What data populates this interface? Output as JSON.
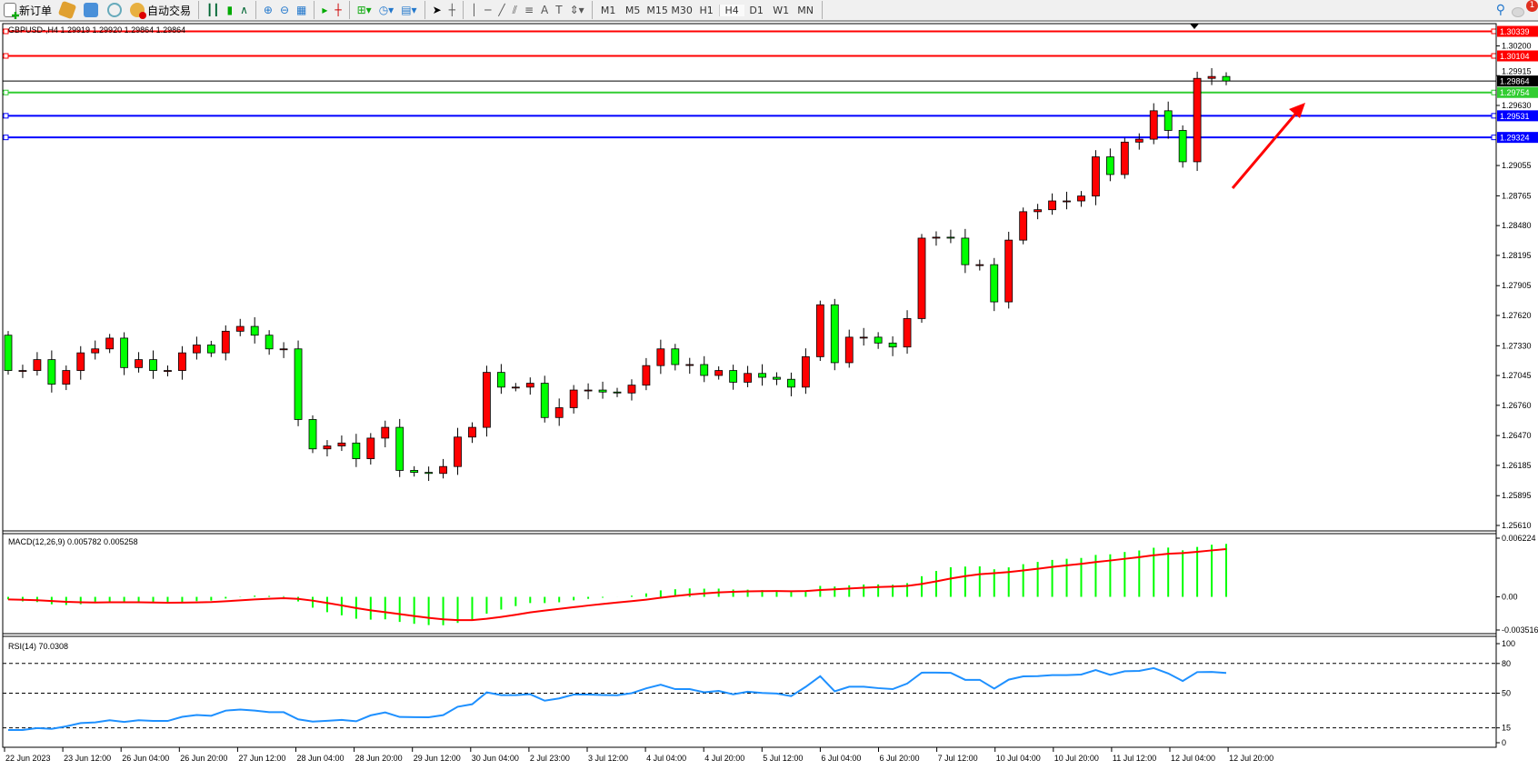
{
  "toolbar": {
    "new_order": "新订单",
    "auto_trading": "自动交易",
    "timeframes": [
      "M1",
      "M5",
      "M15",
      "M30",
      "H1",
      "H4",
      "D1",
      "W1",
      "MN"
    ],
    "active_timeframe": "H4",
    "notification_count": "1"
  },
  "chart": {
    "title": "GBPUSD-,H4  1.29919 1.29920 1.29864 1.29864",
    "colors": {
      "bull": "#ff0000",
      "bear": "#00ff00",
      "grid": "#000000",
      "macd_hist": "#00ff00",
      "macd_signal": "#ff0000",
      "rsi": "#1e90ff"
    },
    "closes_start": 1.27431,
    "closes": [
      1.27093,
      1.27093,
      1.27197,
      1.26962,
      1.27093,
      1.27262,
      1.273,
      1.27403,
      1.27121,
      1.27197,
      1.27093,
      1.27093,
      1.27262,
      1.27337,
      1.27262,
      1.27469,
      1.27515,
      1.27431,
      1.273,
      1.273,
      1.26624,
      1.26343,
      1.26371,
      1.26399,
      1.26249,
      1.26446,
      1.26549,
      1.26137,
      1.26118,
      1.26108,
      1.26174,
      1.26456,
      1.26549,
      1.27075,
      1.26934,
      1.26934,
      1.26971,
      1.26643,
      1.26737,
      1.26906,
      1.26906,
      1.26887,
      1.26878,
      1.26953,
      1.2714,
      1.273,
      1.2715,
      1.2715,
      1.27046,
      1.27093,
      1.26981,
      1.27065,
      1.27028,
      1.27009,
      1.26934,
      1.27225,
      1.27722,
      1.27168,
      1.27412,
      1.27412,
      1.27356,
      1.27318,
      1.2759,
      1.2836,
      1.28369,
      1.2836,
      1.28106,
      1.28106,
      1.2775,
      1.28341,
      1.28613,
      1.28632,
      1.28716,
      1.28716,
      1.28763,
      1.29138,
      1.28969,
      1.29279,
      1.29307,
      1.29579,
      1.29391,
      1.29091,
      1.29889,
      1.29907,
      1.29864
    ],
    "price_range": [
      1.2561,
      1.30339
    ],
    "price_ticks": [
      "1.30200",
      "1.29915",
      "1.29630",
      "1.29055",
      "1.28765",
      "1.28480",
      "1.28195",
      "1.27905",
      "1.27620",
      "1.27330",
      "1.27045",
      "1.26760",
      "1.26470",
      "1.26185",
      "1.25895",
      "1.25610"
    ],
    "hlines": [
      {
        "price": "1.30339",
        "color": "#ff0000"
      },
      {
        "price": "1.30104",
        "color": "#ff0000"
      },
      {
        "price": "1.29864",
        "color": "#000000"
      },
      {
        "price": "1.29754",
        "color": "#32cd32"
      },
      {
        "price": "1.29531",
        "color": "#0000ff"
      },
      {
        "price": "1.29324",
        "color": "#0000ff"
      }
    ],
    "annotation": "red-arrow-up-right",
    "time_labels": [
      "22 Jun 2023",
      "23 Jun 12:00",
      "26 Jun 04:00",
      "26 Jun 20:00",
      "27 Jun 12:00",
      "28 Jun 04:00",
      "28 Jun 20:00",
      "29 Jun 12:00",
      "30 Jun 04:00",
      "2 Jul 23:00",
      "3 Jul 12:00",
      "4 Jul 04:00",
      "4 Jul 20:00",
      "5 Jul 12:00",
      "6 Jul 04:00",
      "6 Jul 20:00",
      "7 Jul 12:00",
      "10 Jul 04:00",
      "10 Jul 20:00",
      "11 Jul 12:00",
      "12 Jul 04:00",
      "12 Jul 20:00"
    ]
  },
  "macd": {
    "label": "MACD(12,26,9) 0.005782 0.005258",
    "range": [
      -0.003516,
      0.006224
    ],
    "ticks": [
      "0.006224",
      "0.00",
      "-0.003516"
    ]
  },
  "rsi": {
    "label": "RSI(14) 70.0308",
    "ticks": [
      "100",
      "80",
      "50",
      "15",
      "0"
    ],
    "levels": [
      80,
      50,
      15
    ]
  }
}
